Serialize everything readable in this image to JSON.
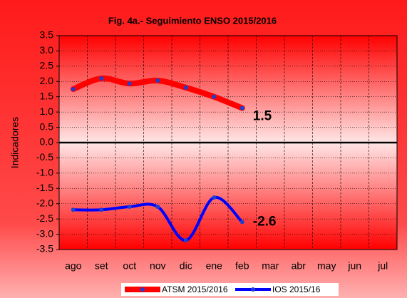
{
  "chart_data": {
    "type": "line",
    "title": "Fig. 4a.- Seguimiento ENSO 2015/2016",
    "y_label": "Indicadores",
    "categories": [
      "ago",
      "set",
      "oct",
      "nov",
      "dic",
      "ene",
      "feb",
      "mar",
      "abr",
      "may",
      "jun",
      "jul"
    ],
    "series": [
      {
        "name": "ATSM 2015/2016",
        "color": "#ff0000",
        "marker_color": "#1f3fd0",
        "values": [
          1.75,
          2.1,
          1.93,
          2.03,
          1.8,
          1.5,
          1.13,
          null,
          null,
          null,
          null,
          null
        ]
      },
      {
        "name": "IOS 2015/16",
        "color": "#0000ff",
        "marker_color": "#1f3fd0",
        "values": [
          -2.2,
          -2.2,
          -2.1,
          -2.1,
          -3.2,
          -1.8,
          -2.6,
          null,
          null,
          null,
          null,
          null
        ]
      }
    ],
    "annotations": [
      "1.5",
      "-2.6"
    ],
    "ylim": [
      -3.5,
      3.5
    ],
    "yticks": [
      {
        "value": 3.5,
        "label": "3.5"
      },
      {
        "value": 3,
        "label": "3.0"
      },
      2.5,
      {
        "value": 2,
        "label": "2.0"
      },
      1.5,
      {
        "value": 1,
        "label": "1.0"
      },
      0.5,
      {
        "value": 0,
        "label": "0.0"
      },
      -0.5,
      {
        "value": -1,
        "label": "-1.0"
      },
      -1.5,
      {
        "value": -2,
        "label": "-2.0"
      },
      -2.5,
      {
        "value": -3,
        "label": "-3.0"
      },
      -3.5
    ],
    "grid": true,
    "legend": "bottom"
  }
}
